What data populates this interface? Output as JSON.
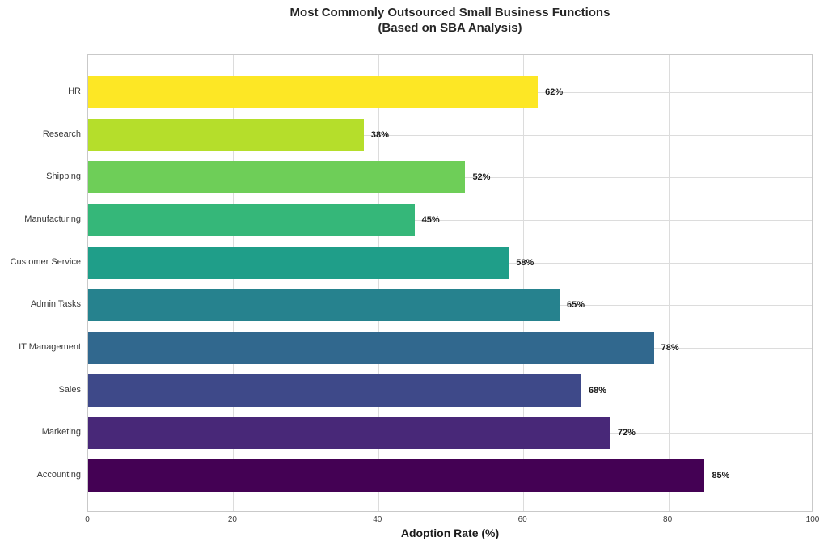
{
  "chart_data": {
    "type": "bar",
    "orientation": "horizontal",
    "title": "Most Commonly Outsourced Small Business Functions",
    "subtitle": "(Based on SBA Analysis)",
    "xlabel": "Adoption Rate (%)",
    "ylabel": "",
    "xlim": [
      0,
      100
    ],
    "xticks": [
      "0",
      "20",
      "40",
      "60",
      "80",
      "100"
    ],
    "grid": true,
    "legend": false,
    "categories": [
      "HR",
      "Research",
      "Shipping",
      "Manufacturing",
      "Customer Service",
      "Admin Tasks",
      "IT Management",
      "Sales",
      "Marketing",
      "Accounting"
    ],
    "values": [
      62,
      38,
      52,
      45,
      58,
      65,
      78,
      68,
      72,
      85
    ],
    "value_labels": [
      "62%",
      "38%",
      "52%",
      "45%",
      "58%",
      "65%",
      "78%",
      "68%",
      "72%",
      "85%"
    ],
    "bar_colors": [
      "#fde725",
      "#b5de2b",
      "#6ece58",
      "#35b779",
      "#1f9e89",
      "#26828e",
      "#31688e",
      "#3e4989",
      "#482878",
      "#440154"
    ],
    "colors": {
      "background": "#ffffff",
      "grid": "#dcdcdc",
      "spine": "#c9c9c9",
      "title": "#262626",
      "tick_label": "#3b3b3b",
      "category_label": "#3a3a3a",
      "value_label": "#1a1a1a"
    }
  }
}
